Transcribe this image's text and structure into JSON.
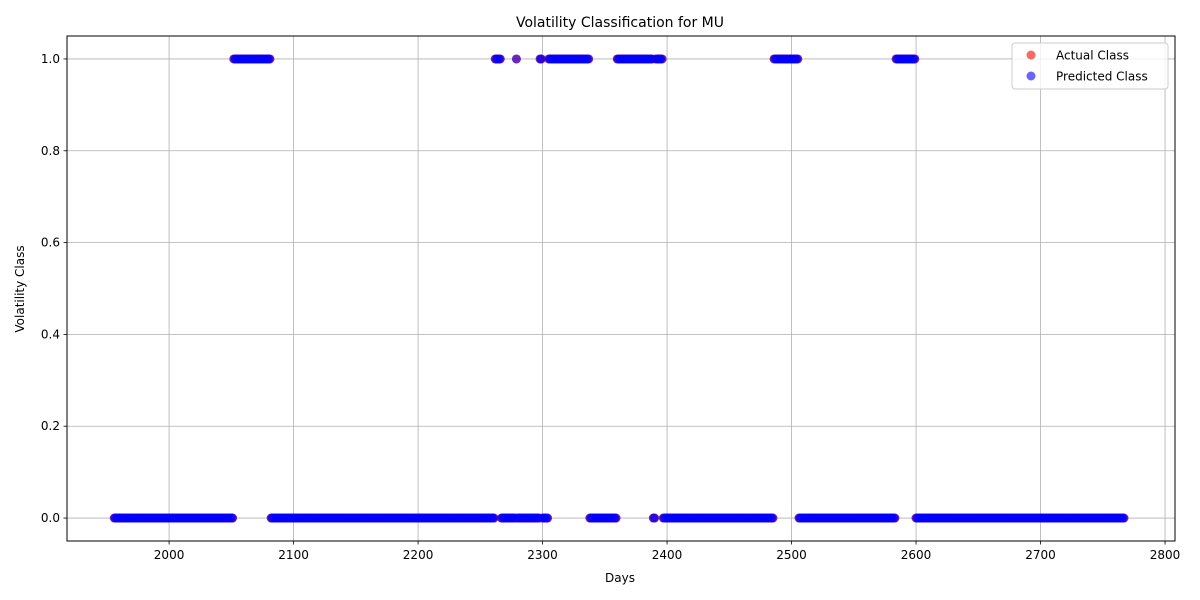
{
  "chart_data": {
    "type": "scatter",
    "title": "Volatility Classification for MU",
    "xlabel": "Days",
    "ylabel": "Volatility Class",
    "xlim": [
      1918,
      2808
    ],
    "ylim": [
      -0.05,
      1.05
    ],
    "x_ticks": [
      2000,
      2100,
      2200,
      2300,
      2400,
      2500,
      2600,
      2700,
      2800
    ],
    "y_ticks": [
      0.0,
      0.2,
      0.4,
      0.6,
      0.8,
      1.0
    ],
    "x_tick_labels": [
      "2000",
      "2100",
      "2200",
      "2300",
      "2400",
      "2500",
      "2600",
      "2700",
      "2800"
    ],
    "y_tick_labels": [
      "0.0",
      "0.2",
      "0.4",
      "0.6",
      "0.8",
      "1.0"
    ],
    "grid": true,
    "legend_position": "top-right",
    "x_range": [
      1956,
      2767
    ],
    "class_one_ranges": [
      [
        2052,
        2081
      ],
      [
        2262,
        2266
      ],
      [
        2279,
        2279
      ],
      [
        2298,
        2299
      ],
      [
        2305,
        2337
      ],
      [
        2360,
        2388
      ],
      [
        2391,
        2396
      ],
      [
        2486,
        2505
      ],
      [
        2584,
        2599
      ]
    ],
    "series": [
      {
        "name": "Actual Class",
        "color": "#ff0000",
        "opacity": 0.6
      },
      {
        "name": "Predicted Class",
        "color": "#0000ff",
        "opacity": 0.6
      }
    ]
  }
}
